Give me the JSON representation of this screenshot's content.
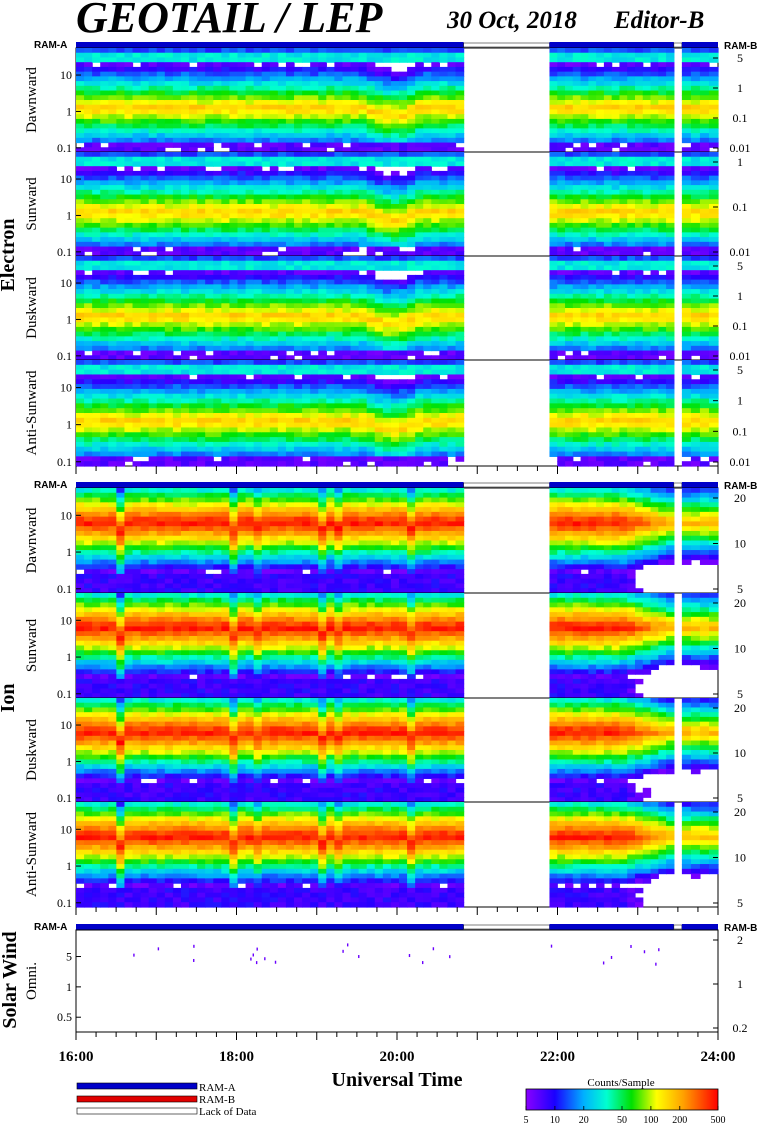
{
  "chart_data": {
    "type": "heatmap",
    "title": "GEOTAIL / LEP",
    "subtitle": "30 Oct, 2018",
    "editor": "Editor-B",
    "xlabel": "Universal Time",
    "x_tick_labels": [
      "16:00",
      "18:00",
      "20:00",
      "22:00",
      "24:00"
    ],
    "x_range_hours": [
      16,
      24
    ],
    "data_gaps_hours": [
      [
        20.83,
        21.9
      ],
      [
        23.45,
        23.55
      ]
    ],
    "ram_a_label": "RAM-A",
    "ram_b_label": "RAM-B",
    "groups": [
      {
        "name": "Electron",
        "panels": [
          {
            "name": "Dawnward",
            "left_ticks": [
              "10",
              "1",
              "0.1"
            ],
            "right_ticks": [
              "5",
              "1",
              "0.1",
              "0.01"
            ]
          },
          {
            "name": "Sunward",
            "left_ticks": [
              "10",
              "1",
              "0.1"
            ],
            "right_ticks": [
              "1",
              "0.1",
              "0.01"
            ]
          },
          {
            "name": "Duskward",
            "left_ticks": [
              "10",
              "1",
              "0.1"
            ],
            "right_ticks": [
              "5",
              "1",
              "0.1",
              "0.01"
            ]
          },
          {
            "name": "Anti-Sunward",
            "left_ticks": [
              "10",
              "1",
              "0.1"
            ],
            "right_ticks": [
              "5",
              "1",
              "0.1",
              "0.01"
            ]
          }
        ]
      },
      {
        "name": "Ion",
        "panels": [
          {
            "name": "Dawnward",
            "left_ticks": [
              "10",
              "1",
              "0.1"
            ],
            "right_ticks": [
              "20",
              "10",
              "5"
            ]
          },
          {
            "name": "Sunward",
            "left_ticks": [
              "10",
              "1",
              "0.1"
            ],
            "right_ticks": [
              "20",
              "10",
              "5"
            ]
          },
          {
            "name": "Duskward",
            "left_ticks": [
              "10",
              "1",
              "0.1"
            ],
            "right_ticks": [
              "20",
              "10",
              "5"
            ]
          },
          {
            "name": "Anti-Sunward",
            "left_ticks": [
              "10",
              "1",
              "0.1"
            ],
            "right_ticks": [
              "20",
              "10",
              "5"
            ]
          }
        ]
      },
      {
        "name": "Solar Wind",
        "panels": [
          {
            "name": "Omni.",
            "left_ticks": [
              "5",
              "1",
              "0.5"
            ],
            "right_ticks": [
              "2",
              "1",
              "0.2"
            ]
          }
        ]
      }
    ],
    "legend": {
      "items": [
        {
          "label": "RAM-A",
          "color": "#0000c8"
        },
        {
          "label": "RAM-B",
          "color": "#e00000"
        },
        {
          "label": "Lack of Data",
          "color": "#ffffff"
        }
      ]
    },
    "colorbar": {
      "title": "Counts/Sample",
      "tick_labels": [
        "5",
        "10",
        "20",
        "50",
        "100",
        "200",
        "500"
      ],
      "values": [
        5,
        10,
        20,
        50,
        100,
        200,
        500
      ],
      "scale": "log"
    }
  }
}
